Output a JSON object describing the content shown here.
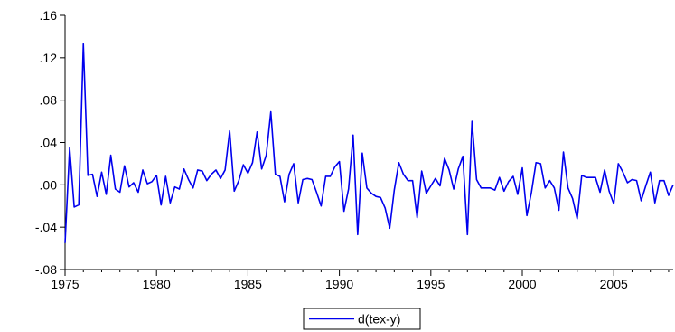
{
  "chart_data": {
    "type": "line",
    "title": "",
    "xlabel": "",
    "ylabel": "",
    "xlim": [
      1975.0,
      2008.25
    ],
    "ylim": [
      -0.08,
      0.16
    ],
    "x_ticks": [
      1975,
      1980,
      1985,
      1990,
      1995,
      2000,
      2005
    ],
    "x_tick_labels": [
      "1975",
      "1980",
      "1985",
      "1990",
      "1995",
      "2000",
      "2005"
    ],
    "y_ticks": [
      -0.08,
      -0.04,
      0.0,
      0.04,
      0.08,
      0.12,
      0.16
    ],
    "y_tick_labels": [
      "-.08",
      "-.04",
      ".00",
      ".04",
      ".08",
      ".12",
      ".16"
    ],
    "grid": false,
    "legend_position": "bottom-center",
    "colors": {
      "series": "#0000ee",
      "axis": "#000000",
      "background": "#ffffff"
    },
    "series": [
      {
        "name": "d(tex-y)",
        "x_start": 1975.0,
        "x_step": 0.25,
        "values": [
          -0.055,
          0.035,
          -0.021,
          -0.019,
          0.133,
          0.009,
          0.01,
          -0.011,
          0.012,
          -0.009,
          0.028,
          -0.004,
          -0.007,
          0.018,
          -0.002,
          0.002,
          -0.007,
          0.014,
          0.001,
          0.003,
          0.009,
          -0.019,
          0.008,
          -0.017,
          -0.002,
          -0.004,
          0.015,
          0.005,
          -0.003,
          0.014,
          0.013,
          0.004,
          0.01,
          0.014,
          0.006,
          0.014,
          0.051,
          -0.006,
          0.004,
          0.019,
          0.011,
          0.021,
          0.05,
          0.015,
          0.028,
          0.069,
          0.01,
          0.008,
          -0.016,
          0.01,
          0.02,
          -0.017,
          0.005,
          0.006,
          0.005,
          -0.007,
          -0.02,
          0.008,
          0.008,
          0.017,
          0.022,
          -0.025,
          -0.004,
          0.047,
          -0.047,
          0.03,
          -0.003,
          -0.008,
          -0.011,
          -0.012,
          -0.022,
          -0.041,
          -0.005,
          0.021,
          0.01,
          0.004,
          0.004,
          -0.031,
          0.013,
          -0.008,
          -0.001,
          0.006,
          -0.001,
          0.025,
          0.014,
          -0.004,
          0.015,
          0.027,
          -0.047,
          0.06,
          0.005,
          -0.003,
          -0.003,
          -0.003,
          -0.005,
          0.007,
          -0.006,
          0.003,
          0.008,
          -0.009,
          0.016,
          -0.029,
          -0.007,
          0.021,
          0.02,
          -0.003,
          0.004,
          -0.003,
          -0.024,
          0.031,
          -0.003,
          -0.013,
          -0.032,
          0.009,
          0.007,
          0.007,
          0.007,
          -0.007,
          0.014,
          -0.006,
          -0.018,
          0.02,
          0.012,
          0.002,
          0.005,
          0.004,
          -0.015,
          -0.001,
          0.012,
          -0.017,
          0.004,
          0.004,
          -0.01,
          0.0
        ]
      }
    ]
  }
}
